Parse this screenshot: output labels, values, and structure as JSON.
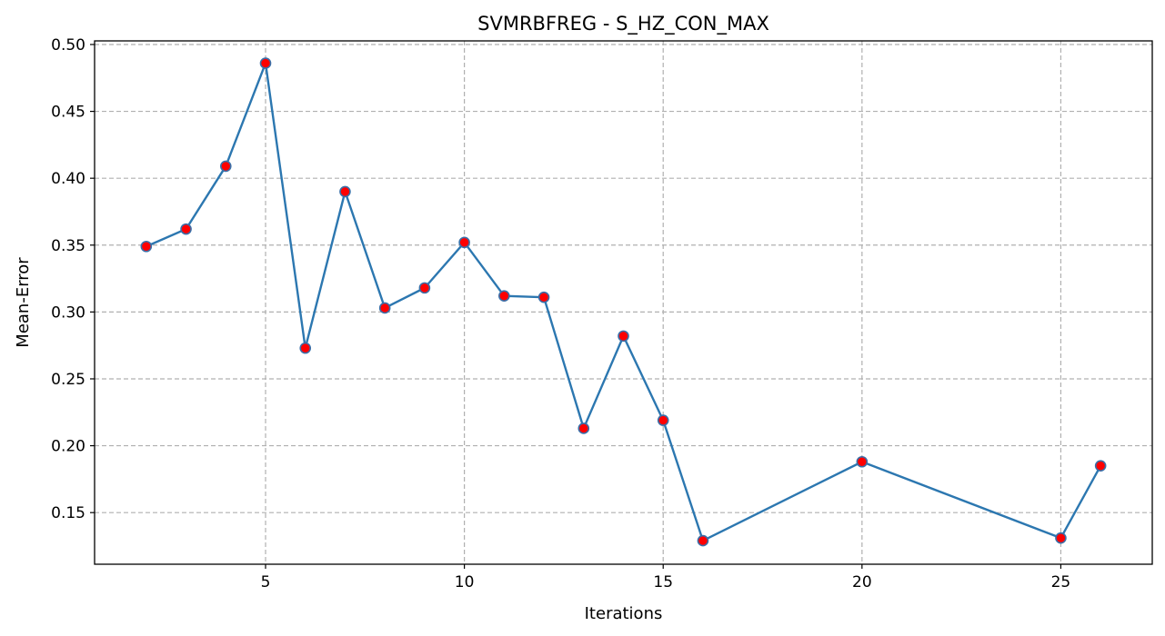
{
  "chart_data": {
    "type": "line",
    "title": "SVMRBFREG - S_HZ_CON_MAX",
    "xlabel": "Iterations",
    "ylabel": "Mean-Error",
    "xlim": [
      0.7,
      27.3
    ],
    "ylim": [
      0.1114,
      0.5027
    ],
    "xticks": [
      5,
      10,
      15,
      20,
      25
    ],
    "yticks": [
      0.15,
      0.2,
      0.25,
      0.3,
      0.35,
      0.4,
      0.45,
      0.5
    ],
    "grid": true,
    "colors": {
      "line": "#2c77b0",
      "marker_fill": "#ff0000",
      "marker_edge": "#3a6fa8",
      "grid": "#b0b0b0"
    },
    "series": [
      {
        "x": [
          2,
          3,
          4,
          5,
          6,
          7,
          8,
          9,
          10,
          11,
          12,
          13,
          14,
          15,
          16,
          20,
          25,
          26
        ],
        "y": [
          0.349,
          0.362,
          0.409,
          0.486,
          0.273,
          0.39,
          0.303,
          0.318,
          0.352,
          0.312,
          0.311,
          0.213,
          0.282,
          0.219,
          0.129,
          0.188,
          0.131,
          0.185
        ]
      }
    ]
  }
}
